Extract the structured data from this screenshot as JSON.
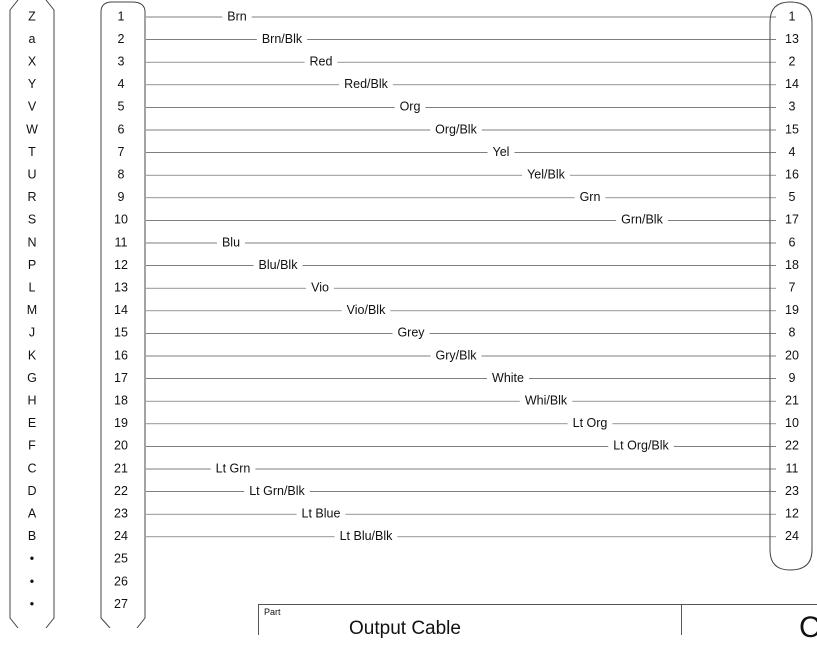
{
  "connector_left": {
    "pins": [
      "Z",
      "a",
      "X",
      "Y",
      "V",
      "W",
      "T",
      "U",
      "R",
      "S",
      "N",
      "P",
      "L",
      "M",
      "J",
      "K",
      "G",
      "H",
      "E",
      "F",
      "C",
      "D",
      "A",
      "B",
      "•",
      "•",
      "•"
    ]
  },
  "connector_mid": {
    "pins": [
      "1",
      "2",
      "3",
      "4",
      "5",
      "6",
      "7",
      "8",
      "9",
      "10",
      "11",
      "12",
      "13",
      "14",
      "15",
      "16",
      "17",
      "18",
      "19",
      "20",
      "21",
      "22",
      "23",
      "24",
      "25",
      "26",
      "27"
    ]
  },
  "wires": [
    {
      "label": "Brn",
      "to": "1"
    },
    {
      "label": "Brn/Blk",
      "to": "13"
    },
    {
      "label": "Red",
      "to": "2"
    },
    {
      "label": "Red/Blk",
      "to": "14"
    },
    {
      "label": "Org",
      "to": "3"
    },
    {
      "label": "Org/Blk",
      "to": "15"
    },
    {
      "label": "Yel",
      "to": "4"
    },
    {
      "label": "Yel/Blk",
      "to": "16"
    },
    {
      "label": "Grn",
      "to": "5"
    },
    {
      "label": "Grn/Blk",
      "to": "17"
    },
    {
      "label": "Blu",
      "to": "6"
    },
    {
      "label": "Blu/Blk",
      "to": "18"
    },
    {
      "label": "Vio",
      "to": "7"
    },
    {
      "label": "Vio/Blk",
      "to": "19"
    },
    {
      "label": "Grey",
      "to": "8"
    },
    {
      "label": "Gry/Blk",
      "to": "20"
    },
    {
      "label": "White",
      "to": "9"
    },
    {
      "label": "Whi/Blk",
      "to": "21"
    },
    {
      "label": "Lt Org",
      "to": "10"
    },
    {
      "label": "Lt Org/Blk",
      "to": "22"
    },
    {
      "label": "Lt Grn",
      "to": "11"
    },
    {
      "label": "Lt Grn/Blk",
      "to": "23"
    },
    {
      "label": "Lt Blue",
      "to": "12"
    },
    {
      "label": "Lt Blu/Blk",
      "to": "24"
    }
  ],
  "title_block": {
    "part_label": "Part",
    "part_name": "Output Cable",
    "right_glyph": "C"
  }
}
